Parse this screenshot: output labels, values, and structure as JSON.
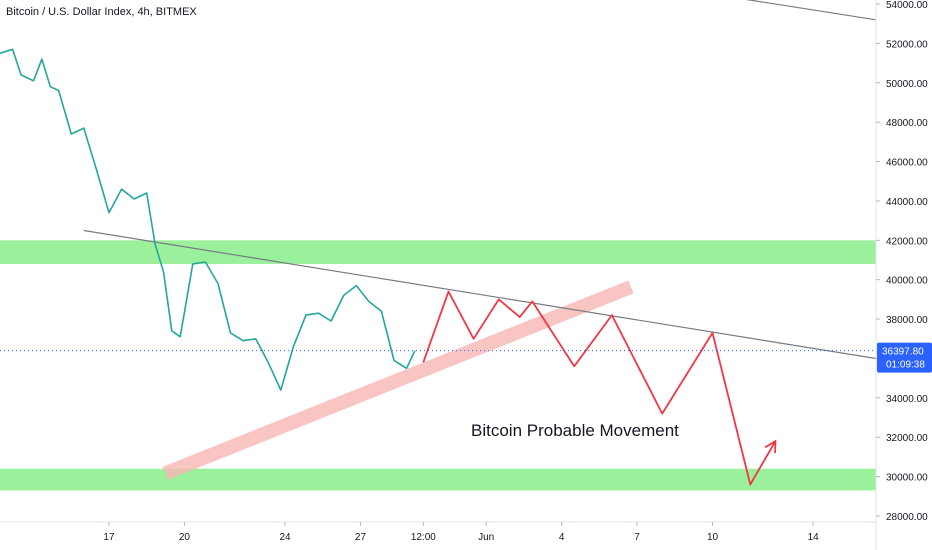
{
  "chart_data": {
    "type": "candlestick",
    "title": "Bitcoin / U.S. Dollar Index, 4h, BITMEX",
    "annotation": "Bitcoin Probable Movement",
    "ylim": [
      28000,
      54000
    ],
    "y_ticks": [
      28000,
      30000,
      32000,
      34000,
      36000,
      38000,
      40000,
      42000,
      44000,
      46000,
      48000,
      50000,
      52000,
      54000
    ],
    "y_tick_labels": [
      "28000.00",
      "30000.00",
      "32000.00",
      "34000.00",
      "36000.00",
      "38000.00",
      "40000.00",
      "42000.00",
      "44000.00",
      "46000.00",
      "48000.00",
      "50000.00",
      "52000.00",
      "54000.00"
    ],
    "x_domain_days": [
      "2021-05-12T16:00",
      "2021-06-16T12:00"
    ],
    "x_ticks": [
      {
        "date": "2021-05-17T00:00",
        "label": "17"
      },
      {
        "date": "2021-05-20T00:00",
        "label": "20"
      },
      {
        "date": "2021-05-24T00:00",
        "label": "24"
      },
      {
        "date": "2021-05-27T00:00",
        "label": "27"
      },
      {
        "date": "2021-05-29T12:00",
        "label": "12:00"
      },
      {
        "date": "2021-06-01T00:00",
        "label": "Jun"
      },
      {
        "date": "2021-06-04T00:00",
        "label": "4"
      },
      {
        "date": "2021-06-07T00:00",
        "label": "7"
      },
      {
        "date": "2021-06-10T00:00",
        "label": "10"
      },
      {
        "date": "2021-06-14T00:00",
        "label": "14"
      }
    ],
    "last_price": {
      "value": 36397.8,
      "label": "36397.80",
      "countdown": "01:09:38"
    },
    "support_zones": [
      {
        "from": 40800,
        "to": 42000
      },
      {
        "from": 29300,
        "to": 30400
      }
    ],
    "lines": [
      {
        "name": "",
        "points": [
          {
            "date": "2021-05-12T16:00",
            "value": 51500
          },
          {
            "date": "2021-05-13T04:00",
            "value": 51700
          },
          {
            "date": "2021-05-13T12:00",
            "value": 50400
          },
          {
            "date": "2021-05-14T00:00",
            "value": 50100
          },
          {
            "date": "2021-05-14T08:00",
            "value": 51200
          },
          {
            "date": "2021-05-14T16:00",
            "value": 49800
          },
          {
            "date": "2021-05-15T00:00",
            "value": 49600
          },
          {
            "date": "2021-05-15T12:00",
            "value": 47400
          },
          {
            "date": "2021-05-16T00:00",
            "value": 47700
          },
          {
            "date": "2021-05-16T12:00",
            "value": 45600
          },
          {
            "date": "2021-05-17T00:00",
            "value": 43400
          },
          {
            "date": "2021-05-17T12:00",
            "value": 44600
          },
          {
            "date": "2021-05-18T00:00",
            "value": 44100
          },
          {
            "date": "2021-05-18T12:00",
            "value": 44400
          },
          {
            "date": "2021-05-18T20:00",
            "value": 41800
          },
          {
            "date": "2021-05-19T04:00",
            "value": 40400
          },
          {
            "date": "2021-05-19T12:00",
            "value": 37400
          },
          {
            "date": "2021-05-19T20:00",
            "value": 37100
          },
          {
            "date": "2021-05-20T08:00",
            "value": 40800
          },
          {
            "date": "2021-05-20T20:00",
            "value": 40900
          },
          {
            "date": "2021-05-21T08:00",
            "value": 39800
          },
          {
            "date": "2021-05-21T20:00",
            "value": 37300
          },
          {
            "date": "2021-05-22T08:00",
            "value": 36900
          },
          {
            "date": "2021-05-22T20:00",
            "value": 37000
          },
          {
            "date": "2021-05-23T08:00",
            "value": 35800
          },
          {
            "date": "2021-05-23T20:00",
            "value": 34400
          },
          {
            "date": "2021-05-24T08:00",
            "value": 36600
          },
          {
            "date": "2021-05-24T20:00",
            "value": 38200
          },
          {
            "date": "2021-05-25T08:00",
            "value": 38300
          },
          {
            "date": "2021-05-25T20:00",
            "value": 37900
          },
          {
            "date": "2021-05-26T08:00",
            "value": 39200
          },
          {
            "date": "2021-05-26T20:00",
            "value": 39700
          },
          {
            "date": "2021-05-27T08:00",
            "value": 38900
          },
          {
            "date": "2021-05-27T20:00",
            "value": 38400
          },
          {
            "date": "2021-05-28T08:00",
            "value": 35900
          },
          {
            "date": "2021-05-28T20:00",
            "value": 35500
          },
          {
            "date": "2021-05-29T04:00",
            "value": 36400
          }
        ],
        "color": "#26a69a",
        "kind": "price"
      },
      {
        "name": "",
        "points": [
          {
            "date": "2021-05-16T00:00",
            "value": 42500
          },
          {
            "date": "2021-06-16T12:00",
            "value": 36000
          }
        ],
        "color": "#787b86",
        "kind": "trendline"
      },
      {
        "name": "",
        "points": [
          {
            "date": "2021-06-10T00:00",
            "value": 54500
          },
          {
            "date": "2021-06-16T12:00",
            "value": 53200
          }
        ],
        "color": "#787b86",
        "kind": "trendline"
      },
      {
        "name": "",
        "points": [
          {
            "date": "2021-05-29T12:00",
            "value": 35800
          },
          {
            "date": "2021-05-30T12:00",
            "value": 39400
          },
          {
            "date": "2021-05-31T12:00",
            "value": 37000
          },
          {
            "date": "2021-06-01T12:00",
            "value": 39000
          },
          {
            "date": "2021-06-02T08:00",
            "value": 38100
          },
          {
            "date": "2021-06-02T20:00",
            "value": 38900
          },
          {
            "date": "2021-06-04T12:00",
            "value": 35600
          },
          {
            "date": "2021-06-06T00:00",
            "value": 38200
          },
          {
            "date": "2021-06-08T00:00",
            "value": 33200
          },
          {
            "date": "2021-06-10T00:00",
            "value": 37300
          },
          {
            "date": "2021-06-11T12:00",
            "value": 29600
          },
          {
            "date": "2021-06-12T12:00",
            "value": 31800
          }
        ],
        "color": "#f23645",
        "kind": "projection"
      }
    ],
    "channel": {
      "points": [
        {
          "date": "2021-05-19T12:00",
          "value": 30300
        },
        {
          "date": "2021-06-06T12:00",
          "value": 39500
        }
      ],
      "color": "#f7b6b4"
    },
    "grid": false,
    "legend": "none"
  }
}
